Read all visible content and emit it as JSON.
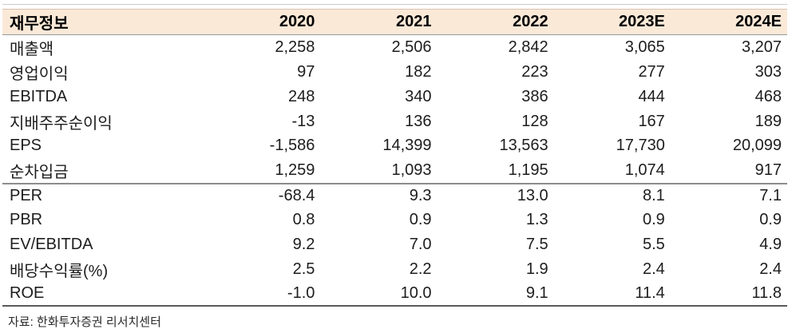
{
  "table": {
    "columns": [
      "재무정보",
      "2020",
      "2021",
      "2022",
      "2023E",
      "2024E"
    ],
    "rows": [
      {
        "label": "매출액",
        "values": [
          "2,258",
          "2,506",
          "2,842",
          "3,065",
          "3,207"
        ]
      },
      {
        "label": "영업이익",
        "values": [
          "97",
          "182",
          "223",
          "277",
          "303"
        ]
      },
      {
        "label": "EBITDA",
        "values": [
          "248",
          "340",
          "386",
          "444",
          "468"
        ]
      },
      {
        "label": "지배주주순이익",
        "values": [
          "-13",
          "136",
          "128",
          "167",
          "189"
        ]
      },
      {
        "label": "EPS",
        "values": [
          "-1,586",
          "14,399",
          "13,563",
          "17,730",
          "20,099"
        ]
      },
      {
        "label": "순차입금",
        "values": [
          "1,259",
          "1,093",
          "1,195",
          "1,074",
          "917"
        ]
      },
      {
        "label": "PER",
        "values": [
          "-68.4",
          "9.3",
          "13.0",
          "8.1",
          "7.1"
        ]
      },
      {
        "label": "PBR",
        "values": [
          "0.8",
          "0.9",
          "1.3",
          "0.9",
          "0.9"
        ]
      },
      {
        "label": "EV/EBITDA",
        "values": [
          "9.2",
          "7.0",
          "7.5",
          "5.5",
          "4.9"
        ]
      },
      {
        "label": "배당수익률(%)",
        "values": [
          "2.5",
          "2.2",
          "1.9",
          "2.4",
          "2.4"
        ]
      },
      {
        "label": "ROE",
        "values": [
          "-1.0",
          "10.0",
          "9.1",
          "11.4",
          "11.8"
        ]
      }
    ]
  },
  "footer": {
    "source_note": "자료: 한화투자증권  리서치센터"
  },
  "colors": {
    "header_bg": "#FBE9D8",
    "header_top_rule": "#D8C2AD",
    "header_bottom_rule": "#999999",
    "top_rule": "#C9C9C9",
    "section_rule": "#8C8C8C",
    "bottom_rule": "#5A5A5A",
    "text": "#1A1A1A"
  }
}
